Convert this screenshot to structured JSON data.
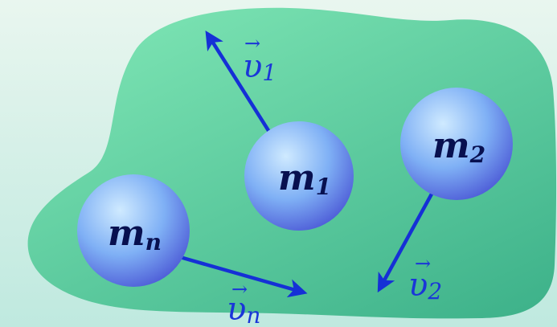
{
  "colors": {
    "background_top": "#e9f6ef",
    "background_bottom": "#bfe9df",
    "blob_light": "#7fe6b5",
    "blob_dark": "#3fb38b",
    "ball_highlight": "#cfeaff",
    "ball_mid": "#7fb0f5",
    "ball_edge": "#4f5fd8",
    "arrow": "#1530d6",
    "mass_text": "#081050",
    "velocity_text": "#1a36d8"
  },
  "masses": [
    {
      "id": "m1",
      "symbol": "m",
      "subscript": "1"
    },
    {
      "id": "m2",
      "symbol": "m",
      "subscript": "2"
    },
    {
      "id": "mn",
      "symbol": "m",
      "subscript": "n"
    }
  ],
  "velocities": [
    {
      "id": "v1",
      "symbol": "υ",
      "subscript": "1",
      "vector_mark": "→"
    },
    {
      "id": "v2",
      "symbol": "υ",
      "subscript": "2",
      "vector_mark": "→"
    },
    {
      "id": "vn",
      "symbol": "υ",
      "subscript": "n",
      "vector_mark": "→"
    }
  ]
}
